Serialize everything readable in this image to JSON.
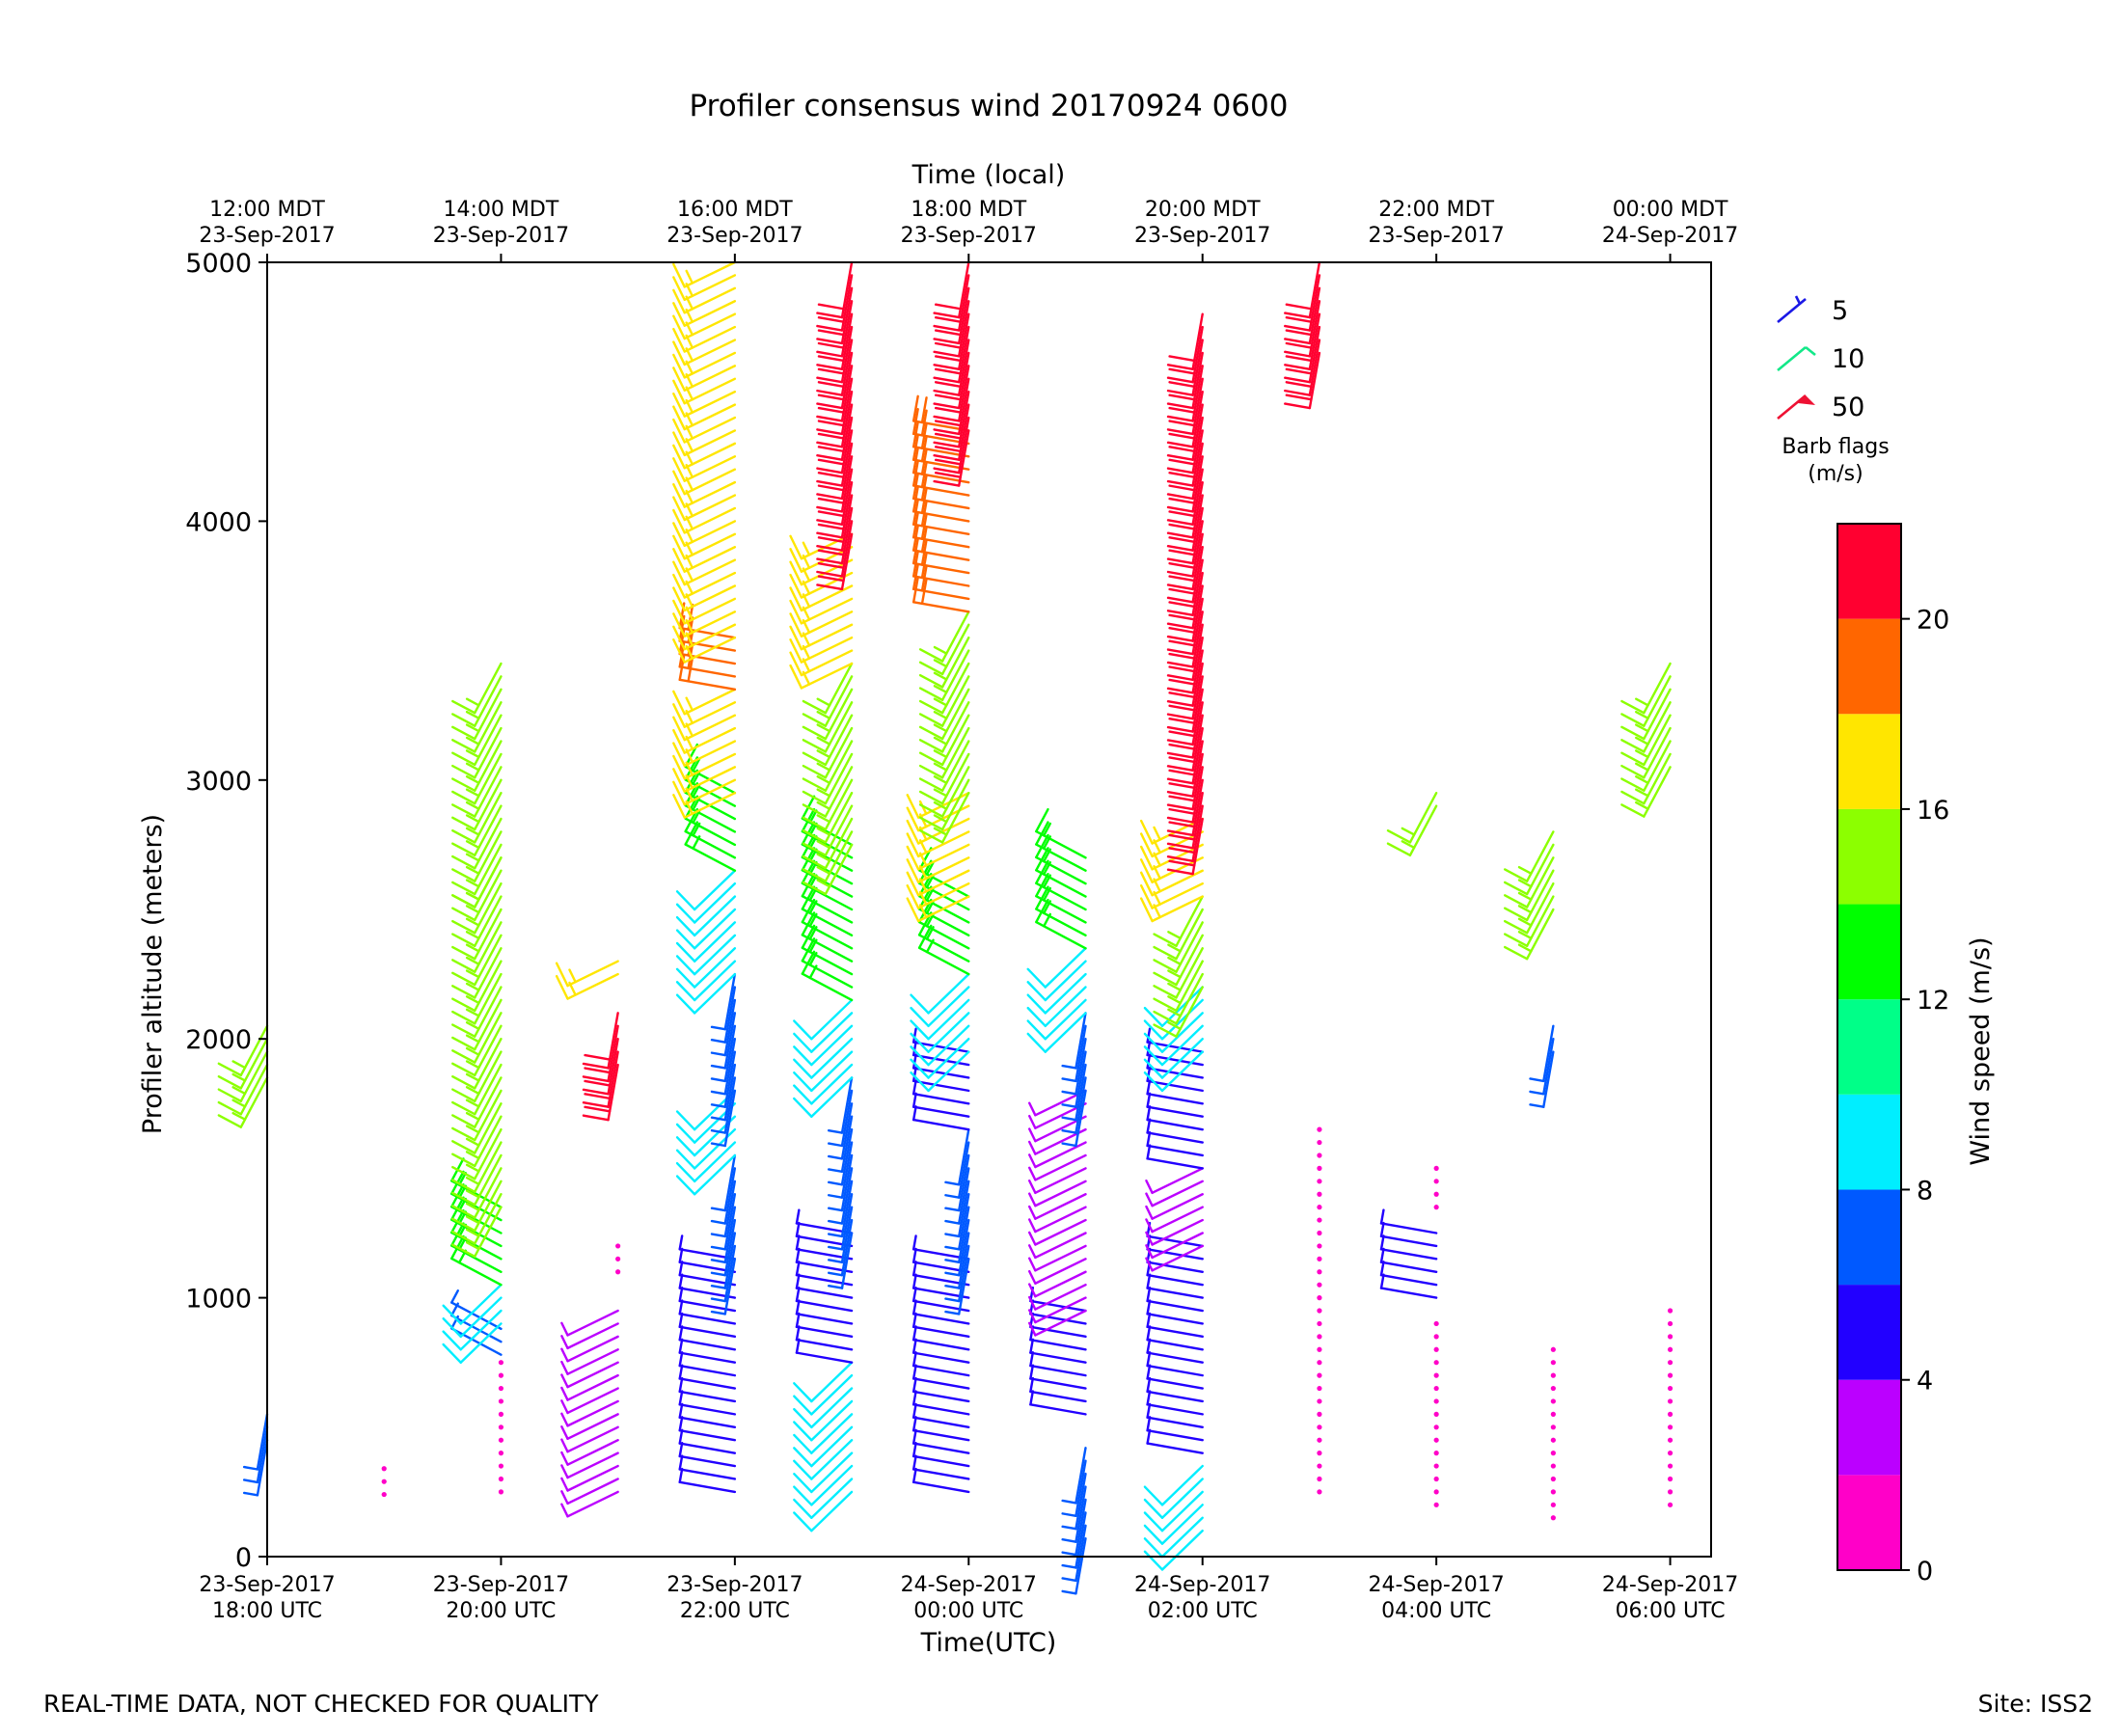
{
  "chart_data": {
    "type": "wind-barb",
    "title": "Profiler consensus wind 20170924 0600",
    "xlabel": "Time(UTC)",
    "x2label": "Time (local)",
    "ylabel": "Profiler altitude (meters)",
    "ylim": [
      0,
      5000
    ],
    "xlim_hours": [
      0,
      12.35
    ],
    "yticks": [
      0,
      1000,
      2000,
      3000,
      4000,
      5000
    ],
    "xticks_utc": [
      {
        "h": 0,
        "l1": "23-Sep-2017",
        "l2": "18:00 UTC"
      },
      {
        "h": 2,
        "l1": "23-Sep-2017",
        "l2": "20:00 UTC"
      },
      {
        "h": 4,
        "l1": "23-Sep-2017",
        "l2": "22:00 UTC"
      },
      {
        "h": 6,
        "l1": "24-Sep-2017",
        "l2": "00:00 UTC"
      },
      {
        "h": 8,
        "l1": "24-Sep-2017",
        "l2": "02:00 UTC"
      },
      {
        "h": 10,
        "l1": "24-Sep-2017",
        "l2": "04:00 UTC"
      },
      {
        "h": 12,
        "l1": "24-Sep-2017",
        "l2": "06:00 UTC"
      }
    ],
    "xticks_local": [
      {
        "h": 0,
        "l1": "12:00 MDT",
        "l2": "23-Sep-2017"
      },
      {
        "h": 2,
        "l1": "14:00 MDT",
        "l2": "23-Sep-2017"
      },
      {
        "h": 4,
        "l1": "16:00 MDT",
        "l2": "23-Sep-2017"
      },
      {
        "h": 6,
        "l1": "18:00 MDT",
        "l2": "23-Sep-2017"
      },
      {
        "h": 8,
        "l1": "20:00 MDT",
        "l2": "23-Sep-2017"
      },
      {
        "h": 10,
        "l1": "22:00 MDT",
        "l2": "23-Sep-2017"
      },
      {
        "h": 12,
        "l1": "00:00 MDT",
        "l2": "24-Sep-2017"
      }
    ],
    "profiles": [
      {
        "h": 0.0,
        "ranges": [
          {
            "lo": 1850,
            "hi": 2050,
            "spd": 15
          },
          {
            "lo": 450,
            "hi": 560,
            "spd": 7
          }
        ]
      },
      {
        "h": 1.0,
        "ranges": [
          {
            "lo": 240,
            "hi": 380,
            "spd": 1
          }
        ]
      },
      {
        "h": 2.0,
        "ranges": [
          {
            "lo": 250,
            "hi": 780,
            "spd": 1
          },
          {
            "lo": 780,
            "hi": 900,
            "spd": 6
          },
          {
            "lo": 900,
            "hi": 1050,
            "spd": 9
          },
          {
            "lo": 1050,
            "hi": 1350,
            "spd": 13
          },
          {
            "lo": 1350,
            "hi": 2700,
            "spd": 15
          },
          {
            "lo": 2700,
            "hi": 3450,
            "spd": 15
          }
        ]
      },
      {
        "h": 3.0,
        "ranges": [
          {
            "lo": 1100,
            "hi": 1200,
            "spd": 1
          },
          {
            "lo": 1900,
            "hi": 2100,
            "spd": 21
          },
          {
            "lo": 2250,
            "hi": 2300,
            "spd": 17
          },
          {
            "lo": 250,
            "hi": 980,
            "spd": 3
          }
        ]
      },
      {
        "h": 4.0,
        "ranges": [
          {
            "lo": 250,
            "hi": 1150,
            "spd": 5
          },
          {
            "lo": 1150,
            "hi": 1550,
            "spd": 7
          },
          {
            "lo": 1550,
            "hi": 1800,
            "spd": 9
          },
          {
            "lo": 1800,
            "hi": 2250,
            "spd": 7
          },
          {
            "lo": 2250,
            "hi": 2650,
            "spd": 9
          },
          {
            "lo": 2650,
            "hi": 2950,
            "spd": 13
          },
          {
            "lo": 2950,
            "hi": 3350,
            "spd": 17
          },
          {
            "lo": 3350,
            "hi": 3550,
            "spd": 19
          },
          {
            "lo": 3550,
            "hi": 5000,
            "spd": 17
          }
        ]
      },
      {
        "h": 5.0,
        "ranges": [
          {
            "lo": 250,
            "hi": 750,
            "spd": 9
          },
          {
            "lo": 750,
            "hi": 1250,
            "spd": 5
          },
          {
            "lo": 1250,
            "hi": 1850,
            "spd": 7
          },
          {
            "lo": 1850,
            "hi": 2150,
            "spd": 9
          },
          {
            "lo": 2150,
            "hi": 2750,
            "spd": 13
          },
          {
            "lo": 2750,
            "hi": 3450,
            "spd": 15
          },
          {
            "lo": 3450,
            "hi": 3950,
            "spd": 17
          },
          {
            "lo": 3950,
            "hi": 5000,
            "spd": 21
          }
        ]
      },
      {
        "h": 6.0,
        "ranges": [
          {
            "lo": 250,
            "hi": 1150,
            "spd": 5
          },
          {
            "lo": 1150,
            "hi": 1650,
            "spd": 7
          },
          {
            "lo": 1650,
            "hi": 1950,
            "spd": 5
          },
          {
            "lo": 1950,
            "hi": 2250,
            "spd": 9
          },
          {
            "lo": 2250,
            "hi": 2550,
            "spd": 13
          },
          {
            "lo": 2550,
            "hi": 2950,
            "spd": 17
          },
          {
            "lo": 2950,
            "hi": 3650,
            "spd": 15
          },
          {
            "lo": 3650,
            "hi": 4350,
            "spd": 19
          },
          {
            "lo": 4350,
            "hi": 5000,
            "spd": 21
          }
        ]
      },
      {
        "h": 7.0,
        "ranges": [
          {
            "lo": 70,
            "hi": 450,
            "spd": 7
          },
          {
            "lo": 550,
            "hi": 950,
            "spd": 5
          },
          {
            "lo": 950,
            "hi": 1800,
            "spd": 3
          },
          {
            "lo": 1800,
            "hi": 2100,
            "spd": 7
          },
          {
            "lo": 2100,
            "hi": 2350,
            "spd": 9
          },
          {
            "lo": 2350,
            "hi": 2700,
            "spd": 13
          }
        ]
      },
      {
        "h": 8.0,
        "ranges": [
          {
            "lo": 100,
            "hi": 350,
            "spd": 9
          },
          {
            "lo": 400,
            "hi": 1200,
            "spd": 5
          },
          {
            "lo": 1200,
            "hi": 1500,
            "spd": 3
          },
          {
            "lo": 1500,
            "hi": 1950,
            "spd": 5
          },
          {
            "lo": 1950,
            "hi": 2200,
            "spd": 9
          },
          {
            "lo": 2200,
            "hi": 2550,
            "spd": 15
          },
          {
            "lo": 2550,
            "hi": 2850,
            "spd": 17
          },
          {
            "lo": 2850,
            "hi": 4800,
            "spd": 21
          }
        ]
      },
      {
        "h": 9.0,
        "ranges": [
          {
            "lo": 250,
            "hi": 1650,
            "spd": 1
          },
          {
            "lo": 4650,
            "hi": 5000,
            "spd": 21
          }
        ]
      },
      {
        "h": 10.0,
        "ranges": [
          {
            "lo": 200,
            "hi": 900,
            "spd": 1
          },
          {
            "lo": 1000,
            "hi": 1250,
            "spd": 5
          },
          {
            "lo": 1350,
            "hi": 1500,
            "spd": 1
          },
          {
            "lo": 2900,
            "hi": 2950,
            "spd": 15
          }
        ]
      },
      {
        "h": 11.0,
        "ranges": [
          {
            "lo": 150,
            "hi": 800,
            "spd": 1
          },
          {
            "lo": 1950,
            "hi": 2050,
            "spd": 7
          },
          {
            "lo": 2500,
            "hi": 2800,
            "spd": 15
          }
        ]
      },
      {
        "h": 12.0,
        "ranges": [
          {
            "lo": 200,
            "hi": 950,
            "spd": 1
          },
          {
            "lo": 3050,
            "hi": 3450,
            "spd": 15
          }
        ]
      }
    ],
    "legend_barbs": [
      {
        "label": "5",
        "color": "#1a18e6"
      },
      {
        "label": "10",
        "color": "#12e888"
      },
      {
        "label": "50",
        "color": "#ee1133"
      }
    ],
    "legend_title": [
      "Barb flags",
      "(m/s)"
    ],
    "colorbar": {
      "label": "Wind speed (m/s)",
      "bins": [
        0,
        2,
        4,
        6,
        8,
        10,
        12,
        14,
        16,
        18,
        20,
        22
      ],
      "colors": [
        "#ff00c8",
        "#bb00ff",
        "#2200ff",
        "#0059ff",
        "#00eeff",
        "#00ff88",
        "#00ff00",
        "#8cff00",
        "#ffe600",
        "#ff6600",
        "#ff0030"
      ],
      "ticks": [
        0,
        4,
        8,
        12,
        16,
        20
      ]
    }
  },
  "footer": {
    "left": "REAL-TIME DATA, NOT CHECKED FOR QUALITY",
    "right": "Site: ISS2"
  }
}
